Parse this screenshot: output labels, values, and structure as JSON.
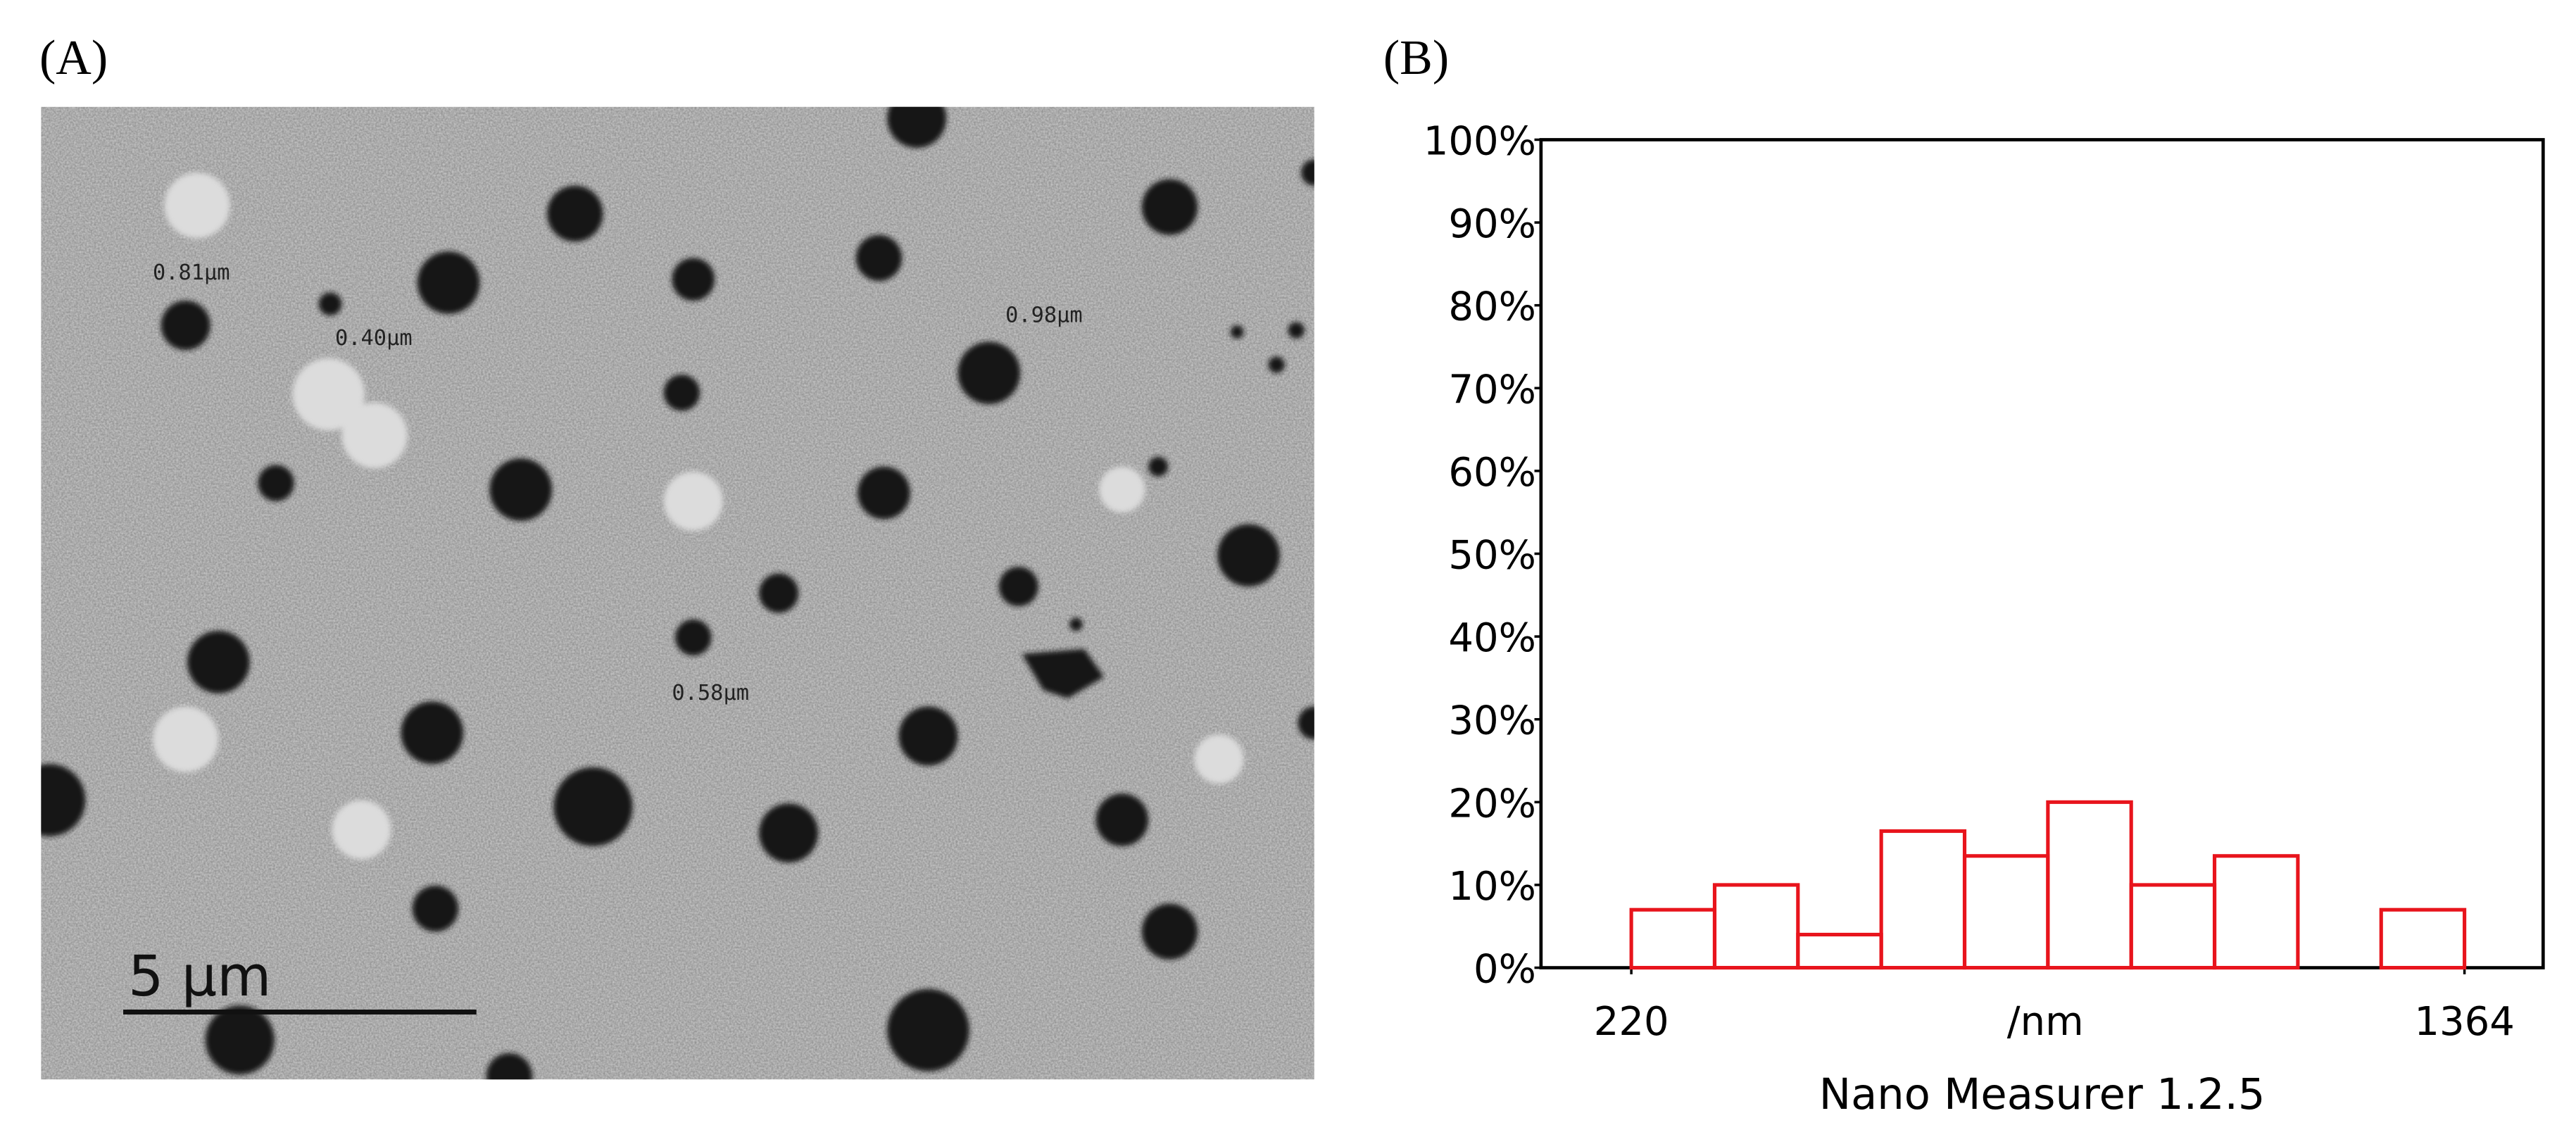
{
  "panel_a": {
    "label": "(A)",
    "annotations": [
      "0.81µm",
      "0.40µm",
      "0.98µm",
      "0.58µm"
    ],
    "scale_bar": "5 µm"
  },
  "chart_data": {
    "type": "histogram",
    "label": "(B)",
    "bins": [
      220,
      334.4,
      448.8,
      563.2,
      677.6,
      792,
      906.4,
      1020.8,
      1135.2,
      1249.6,
      1364
    ],
    "values": [
      7,
      10,
      4,
      16.5,
      13.5,
      20,
      10,
      13.5,
      0,
      7
    ],
    "color": "#e8141c",
    "xlabel": "/nm",
    "footer": "Nano Measurer 1.2.5",
    "xlim": [
      96,
      1472
    ],
    "xticks": [
      220,
      1364
    ],
    "ylim": [
      0,
      100
    ],
    "yticks": [
      {
        "value": 0,
        "label": "0%"
      },
      {
        "value": 10,
        "label": "10%"
      },
      {
        "value": 20,
        "label": "20%"
      },
      {
        "value": 30,
        "label": "30%"
      },
      {
        "value": 40,
        "label": "40%"
      },
      {
        "value": 50,
        "label": "50%"
      },
      {
        "value": 60,
        "label": "60%"
      },
      {
        "value": 70,
        "label": "70%"
      },
      {
        "value": 80,
        "label": "80%"
      },
      {
        "value": 90,
        "label": "90%"
      },
      {
        "value": 100,
        "label": "100%"
      }
    ]
  }
}
